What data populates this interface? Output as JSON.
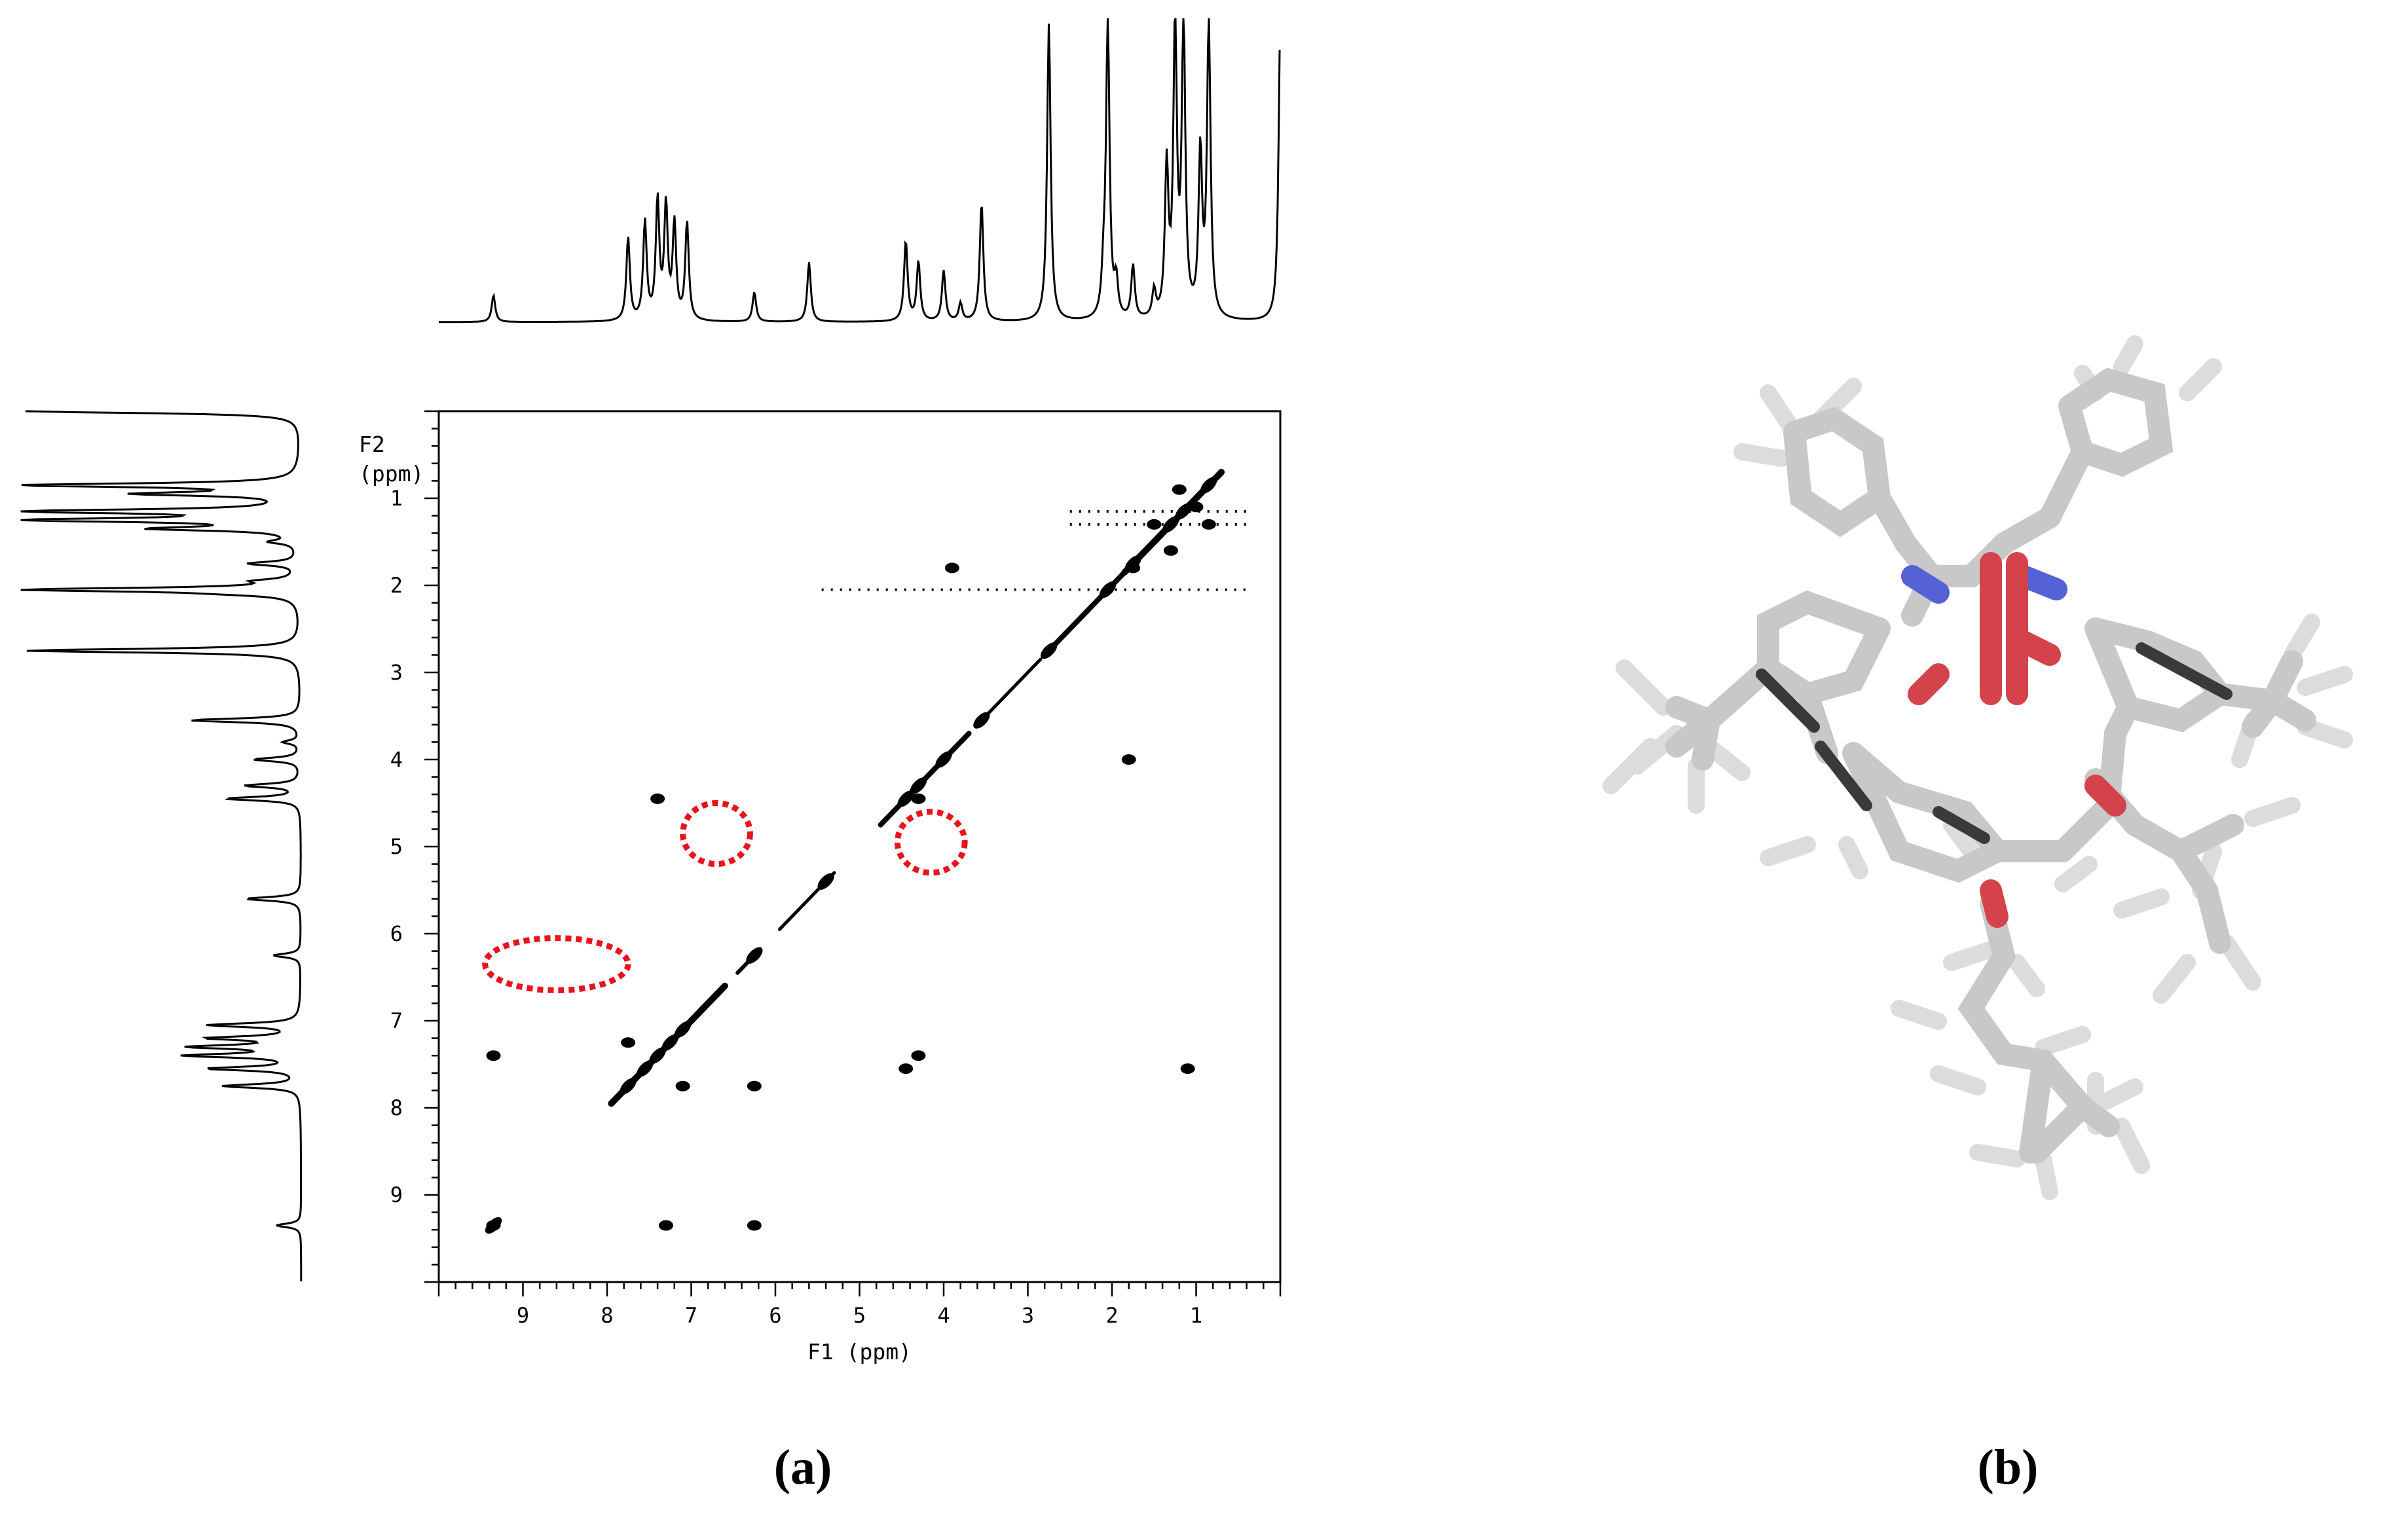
{
  "panel_a": {
    "caption": "(a)",
    "chart_data": {
      "type": "2D NMR contour plot (COSY) with 1D projections",
      "xlabel": "F1 (ppm)",
      "ylabel_line1": "F2",
      "ylabel_line2": "(ppm)",
      "x_ticks": [
        "9",
        "8",
        "7",
        "6",
        "5",
        "4",
        "3",
        "2",
        "1"
      ],
      "y_ticks": [
        "1",
        "2",
        "3",
        "4",
        "5",
        "6",
        "7",
        "8",
        "9"
      ],
      "xlim": [
        10.0,
        0.0
      ],
      "ylim": [
        0.0,
        10.0
      ],
      "diagonal_peaks": [
        {
          "ppm": 9.35
        },
        {
          "ppm": 7.75
        },
        {
          "ppm": 7.55
        },
        {
          "ppm": 7.4
        },
        {
          "ppm": 7.25
        },
        {
          "ppm": 7.1
        },
        {
          "ppm": 6.25
        },
        {
          "ppm": 5.4
        },
        {
          "ppm": 4.45
        },
        {
          "ppm": 4.3
        },
        {
          "ppm": 4.0
        },
        {
          "ppm": 3.55
        },
        {
          "ppm": 2.75
        },
        {
          "ppm": 2.05
        },
        {
          "ppm": 1.75
        },
        {
          "ppm": 1.3
        },
        {
          "ppm": 1.15
        },
        {
          "ppm": 0.85
        }
      ],
      "cross_peaks": [
        {
          "f1": 9.35,
          "f2": 9.35
        },
        {
          "f1": 7.3,
          "f2": 9.35
        },
        {
          "f1": 6.25,
          "f2": 9.35
        },
        {
          "f1": 9.35,
          "f2": 7.4
        },
        {
          "f1": 7.75,
          "f2": 7.25
        },
        {
          "f1": 7.1,
          "f2": 7.75
        },
        {
          "f1": 6.25,
          "f2": 7.75
        },
        {
          "f1": 4.45,
          "f2": 7.55
        },
        {
          "f1": 4.3,
          "f2": 7.4
        },
        {
          "f1": 1.1,
          "f2": 7.55
        },
        {
          "f1": 7.4,
          "f2": 4.45
        },
        {
          "f1": 4.3,
          "f2": 4.45
        },
        {
          "f1": 1.8,
          "f2": 4.0
        },
        {
          "f1": 1.75,
          "f2": 1.8
        },
        {
          "f1": 1.5,
          "f2": 1.3
        },
        {
          "f1": 1.3,
          "f2": 1.6
        },
        {
          "f1": 1.0,
          "f2": 1.1
        },
        {
          "f1": 0.85,
          "f2": 1.3
        },
        {
          "f1": 1.2,
          "f2": 0.9
        },
        {
          "f1": 3.9,
          "f2": 1.8
        }
      ],
      "t1_noise_ridges_f2": [
        1.15,
        1.3,
        2.05
      ],
      "projection_top_peaks": [
        {
          "ppm": 9.35,
          "height": 0.09
        },
        {
          "ppm": 7.75,
          "height": 0.28
        },
        {
          "ppm": 7.55,
          "height": 0.33
        },
        {
          "ppm": 7.4,
          "height": 0.4
        },
        {
          "ppm": 7.3,
          "height": 0.38
        },
        {
          "ppm": 7.2,
          "height": 0.32
        },
        {
          "ppm": 7.05,
          "height": 0.33
        },
        {
          "ppm": 6.25,
          "height": 0.1
        },
        {
          "ppm": 5.6,
          "height": 0.2
        },
        {
          "ppm": 4.45,
          "height": 0.27
        },
        {
          "ppm": 4.3,
          "height": 0.2
        },
        {
          "ppm": 4.0,
          "height": 0.17
        },
        {
          "ppm": 3.8,
          "height": 0.06
        },
        {
          "ppm": 3.55,
          "height": 0.4
        },
        {
          "ppm": 2.75,
          "height": 1.0
        },
        {
          "ppm": 2.1,
          "height": 0.12
        },
        {
          "ppm": 2.05,
          "height": 1.0
        },
        {
          "ppm": 1.95,
          "height": 0.12
        },
        {
          "ppm": 1.75,
          "height": 0.18
        },
        {
          "ppm": 1.5,
          "height": 0.09
        },
        {
          "ppm": 1.35,
          "height": 0.5
        },
        {
          "ppm": 1.25,
          "height": 0.98
        },
        {
          "ppm": 1.15,
          "height": 1.0
        },
        {
          "ppm": 0.95,
          "height": 0.55
        },
        {
          "ppm": 0.85,
          "height": 1.0
        },
        {
          "ppm": 0.0,
          "height": 1.0
        }
      ],
      "highlighted_regions": [
        {
          "shape": "ellipse",
          "f1_center": 8.6,
          "f2_center": 6.35,
          "f1_half_width": 0.85,
          "f2_half_height": 0.3
        },
        {
          "shape": "ellipse",
          "f1_center": 6.7,
          "f2_center": 4.85,
          "f1_half_width": 0.4,
          "f2_half_height": 0.35
        },
        {
          "shape": "ellipse",
          "f1_center": 4.15,
          "f2_center": 4.95,
          "f1_half_width": 0.4,
          "f2_half_height": 0.35
        }
      ],
      "colors": {
        "spectrum": "#000000",
        "highlight": "#e8141c"
      }
    }
  },
  "panel_b": {
    "caption": "(b)",
    "image": "3D molecular stick model",
    "colors": {
      "carbon": "#c8c8c8",
      "hydrogen": "#dcdcdc",
      "nitrogen": "#5562d6",
      "oxygen": "#d4434b",
      "dark_bond": "#3a3a3a"
    }
  }
}
